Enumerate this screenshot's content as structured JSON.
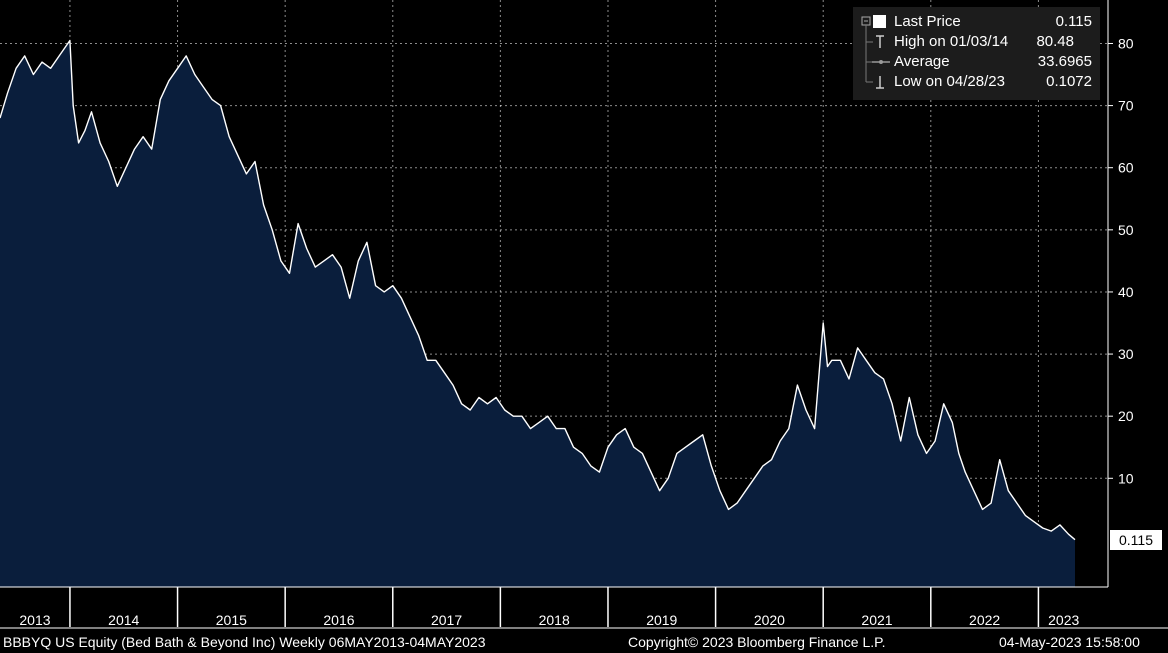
{
  "legend": {
    "last": {
      "label": "Last Price",
      "value": "0.115"
    },
    "high": {
      "label": "High on 01/03/14",
      "value": "80.48"
    },
    "average": {
      "label": "Average",
      "value": "33.6965"
    },
    "low": {
      "label": "Low on 04/28/23",
      "value": "0.1072"
    }
  },
  "last_price_tag": "0.115",
  "footer": {
    "left": "BBBYQ US Equity (Bed Bath & Beyond Inc)  Weekly 06MAY2013-04MAY2023",
    "center": "Copyright© 2023 Bloomberg Finance L.P.",
    "right": "04-May-2023 15:58:00"
  },
  "colors": {
    "background": "#000000",
    "area_fill": "#0a1e3c",
    "line": "#ffffff",
    "grid": "#ffffff"
  },
  "chart_data": {
    "type": "area",
    "xlabel": "",
    "ylabel": "",
    "xlim": [
      2013.35,
      2023.34
    ],
    "ylim": [
      -7.5,
      87
    ],
    "y_ticks": [
      10,
      20,
      30,
      40,
      50,
      60,
      70,
      80
    ],
    "year_labels": [
      "2013",
      "2014",
      "2015",
      "2016",
      "2017",
      "2018",
      "2019",
      "2020",
      "2021",
      "2022",
      "2023"
    ],
    "grid": true,
    "legend_position": "top-right",
    "series": [
      {
        "x": [
          2013.35,
          2013.42,
          2013.5,
          2013.58,
          2013.66,
          2013.74,
          2013.82,
          2013.9,
          2014.0,
          2014.03,
          2014.08,
          2014.14,
          2014.2,
          2014.28,
          2014.36,
          2014.44,
          2014.52,
          2014.6,
          2014.68,
          2014.76,
          2014.84,
          2014.92,
          2015.0,
          2015.08,
          2015.16,
          2015.24,
          2015.32,
          2015.4,
          2015.48,
          2015.56,
          2015.64,
          2015.72,
          2015.8,
          2015.88,
          2015.96,
          2016.04,
          2016.12,
          2016.2,
          2016.28,
          2016.36,
          2016.44,
          2016.52,
          2016.6,
          2016.68,
          2016.76,
          2016.84,
          2016.92,
          2017.0,
          2017.08,
          2017.16,
          2017.24,
          2017.32,
          2017.4,
          2017.48,
          2017.56,
          2017.64,
          2017.72,
          2017.8,
          2017.88,
          2017.96,
          2018.04,
          2018.12,
          2018.2,
          2018.28,
          2018.36,
          2018.44,
          2018.52,
          2018.6,
          2018.68,
          2018.76,
          2018.84,
          2018.92,
          2019.0,
          2019.08,
          2019.16,
          2019.24,
          2019.32,
          2019.4,
          2019.48,
          2019.56,
          2019.64,
          2019.72,
          2019.8,
          2019.88,
          2019.96,
          2020.04,
          2020.12,
          2020.2,
          2020.28,
          2020.36,
          2020.44,
          2020.52,
          2020.6,
          2020.68,
          2020.76,
          2020.84,
          2020.92,
          2021.0,
          2021.04,
          2021.08,
          2021.16,
          2021.24,
          2021.32,
          2021.4,
          2021.48,
          2021.56,
          2021.64,
          2021.72,
          2021.8,
          2021.88,
          2021.96,
          2022.04,
          2022.12,
          2022.2,
          2022.26,
          2022.32,
          2022.4,
          2022.48,
          2022.56,
          2022.64,
          2022.72,
          2022.8,
          2022.88,
          2022.96,
          2023.04,
          2023.12,
          2023.2,
          2023.28,
          2023.34
        ],
        "y": [
          68,
          72,
          76,
          78,
          75,
          77,
          76,
          78,
          80.48,
          70,
          64,
          66,
          69,
          64,
          61,
          57,
          60,
          63,
          65,
          63,
          71,
          74,
          76,
          78,
          75,
          73,
          71,
          70,
          65,
          62,
          59,
          61,
          54,
          50,
          45,
          43,
          51,
          47,
          44,
          45,
          46,
          44,
          39,
          45,
          48,
          41,
          40,
          41,
          39,
          36,
          33,
          29,
          29,
          27,
          25,
          22,
          21,
          23,
          22,
          23,
          21,
          20,
          20,
          18,
          19,
          20,
          18,
          18,
          15,
          14,
          12,
          11,
          15,
          17,
          18,
          15,
          14,
          11,
          8,
          10,
          14,
          15,
          16,
          17,
          12,
          8,
          5,
          6,
          8,
          10,
          12,
          13,
          16,
          18,
          25,
          21,
          18,
          35,
          28,
          29,
          29,
          26,
          31,
          29,
          27,
          26,
          22,
          16,
          23,
          17,
          14,
          16,
          22,
          19,
          14,
          11,
          8,
          5,
          6,
          13,
          8,
          6,
          4,
          3,
          2,
          1.5,
          2.5,
          1,
          0.115
        ]
      }
    ]
  }
}
